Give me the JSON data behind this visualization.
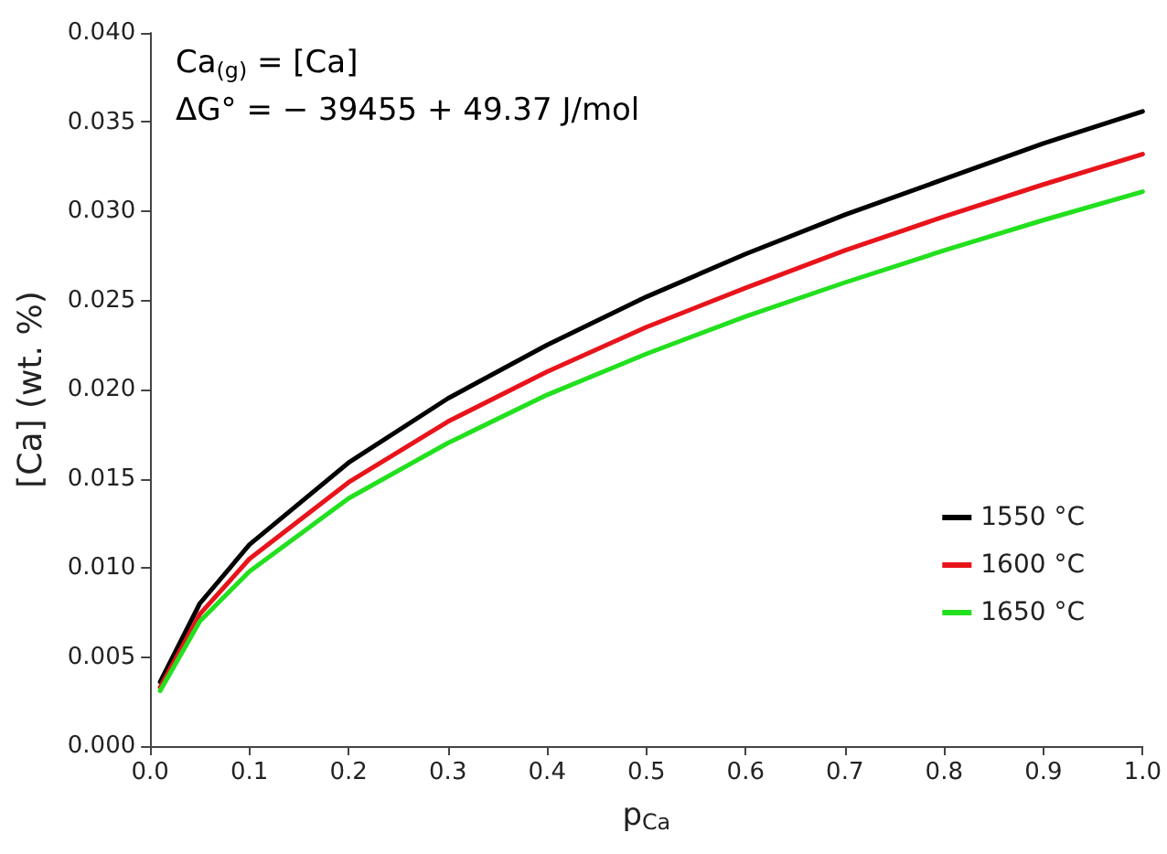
{
  "chart_data": {
    "type": "line",
    "xlabel": "p$_{Ca}$",
    "ylabel": "[Ca] (wt. %)",
    "annotations": [
      "Ca$_{(g)}$ = [Ca]",
      "ΔG° = − 39455 + 49.37 J/mol"
    ],
    "x": [
      0.01,
      0.05,
      0.1,
      0.2,
      0.3,
      0.4,
      0.5,
      0.6,
      0.7,
      0.8,
      0.9,
      1.0
    ],
    "series": [
      {
        "name": "1550 °C",
        "color": "#000000",
        "values": [
          0.0036,
          0.008,
          0.0113,
          0.0159,
          0.0195,
          0.0225,
          0.0252,
          0.0276,
          0.0298,
          0.0318,
          0.0338,
          0.0356
        ]
      },
      {
        "name": "1600 °C",
        "color": "#e8141b",
        "values": [
          0.0033,
          0.0074,
          0.0105,
          0.0148,
          0.0182,
          0.021,
          0.0235,
          0.0257,
          0.0278,
          0.0297,
          0.0315,
          0.0332
        ]
      },
      {
        "name": "1650 °C",
        "color": "#22e01e",
        "values": [
          0.0031,
          0.007,
          0.0098,
          0.0139,
          0.017,
          0.0197,
          0.022,
          0.0241,
          0.026,
          0.0278,
          0.0295,
          0.0311
        ]
      }
    ],
    "xlim": [
      0,
      1
    ],
    "xticks": [
      {
        "value": 0,
        "label": "0.0"
      },
      {
        "value": 0.1,
        "label": "0.1"
      },
      {
        "value": 0.2,
        "label": "0.2"
      },
      {
        "value": 0.3,
        "label": "0.3"
      },
      {
        "value": 0.4,
        "label": "0.4"
      },
      {
        "value": 0.5,
        "label": "0.5"
      },
      {
        "value": 0.6,
        "label": "0.6"
      },
      {
        "value": 0.7,
        "label": "0.7"
      },
      {
        "value": 0.8,
        "label": "0.8"
      },
      {
        "value": 0.9,
        "label": "0.9"
      },
      {
        "value": 1,
        "label": "1.0"
      }
    ],
    "ylim": [
      0,
      0.04
    ],
    "yticks": [
      {
        "value": 0,
        "label": "0.000"
      },
      {
        "value": 0.005,
        "label": "0.005"
      },
      {
        "value": 0.01,
        "label": "0.010"
      },
      {
        "value": 0.015,
        "label": "0.015"
      },
      {
        "value": 0.02,
        "label": "0.020"
      },
      {
        "value": 0.025,
        "label": "0.025"
      },
      {
        "value": 0.03,
        "label": "0.030"
      },
      {
        "value": 0.035,
        "label": "0.035"
      },
      {
        "value": 0.04,
        "label": "0.040"
      }
    ],
    "grid": false,
    "legend": "bottom right",
    "marker": "none",
    "line_style": "solid"
  }
}
